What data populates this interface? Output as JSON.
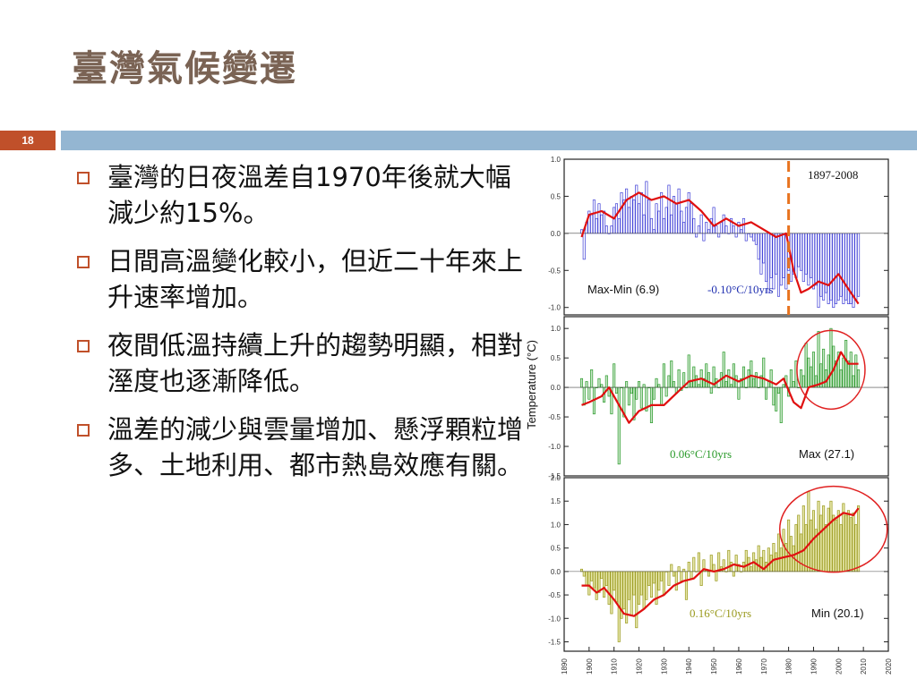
{
  "slide": {
    "title": "臺灣氣候變遷",
    "page_number": "18",
    "bullets": [
      "臺灣的日夜溫差自1970年後就大幅減少約15%。",
      "日間高溫變化較小，但近二十年來上升速率增加。",
      "夜間低溫持續上升的趨勢明顯，相對溼度也逐漸降低。",
      "溫差的減少與雲量增加、懸浮顆粒增多、土地利用、都市熱島效應有關。"
    ]
  },
  "colors": {
    "title": "#7a6354",
    "accent": "#c0502a",
    "band": "#94b6d2",
    "max_min_bars": "#3b3bd6",
    "max_bars": "#2a9a2a",
    "min_bars": "#9a9a1e",
    "smooth_line": "#e01010",
    "cutoff_line": "#e8731e",
    "highlight_circle": "#e02020"
  },
  "chart_data": {
    "type": "bar",
    "ylabel": "Temperature (°C)",
    "x_ticks": [
      1890,
      1900,
      1910,
      1920,
      1930,
      1940,
      1950,
      1960,
      1970,
      1980,
      1990,
      2000,
      2010,
      2020
    ],
    "xlim": [
      1890,
      2020
    ],
    "period_label": "1897-2008",
    "cutoff_year": 1980,
    "panels": [
      {
        "name": "Max-Min (6.9)",
        "trend_label": "-0.10°C/10yrs",
        "ylim": [
          -1.1,
          1.0
        ],
        "y_ticks": [
          "1.0",
          "0.5",
          "0.0",
          "-0.5",
          "-1.0"
        ],
        "y_tick_values": [
          1.0,
          0.5,
          0.0,
          -0.5,
          -1.0
        ],
        "start_year": 1897,
        "values": [
          0.05,
          -0.35,
          0.15,
          0.3,
          0.25,
          0.45,
          0.2,
          0.4,
          0.25,
          0.3,
          0.1,
          0.0,
          0.1,
          0.35,
          0.4,
          0.2,
          0.55,
          0.45,
          0.6,
          0.35,
          0.5,
          0.45,
          0.65,
          0.4,
          0.55,
          0.25,
          0.7,
          0.45,
          0.2,
          0.05,
          0.4,
          0.3,
          0.55,
          0.2,
          0.35,
          0.65,
          0.25,
          0.5,
          0.4,
          0.6,
          0.3,
          0.15,
          0.35,
          0.55,
          0.4,
          0.2,
          -0.05,
          0.1,
          0.25,
          -0.1,
          0.15,
          0.05,
          0.2,
          0.35,
          0.1,
          -0.05,
          0.15,
          0.25,
          0.1,
          0.0,
          0.2,
          0.1,
          -0.05,
          0.15,
          0.05,
          0.2,
          -0.1,
          0.0,
          -0.05,
          -0.1,
          -0.15,
          -0.35,
          -0.55,
          -0.4,
          -0.65,
          -0.8,
          -0.6,
          -0.75,
          -0.55,
          -0.85,
          -0.7,
          -0.6,
          -0.75,
          -0.5,
          -0.65,
          -0.55,
          -0.6,
          -0.45,
          -0.5,
          -0.65,
          -0.55,
          -0.7,
          -0.6,
          -0.75,
          -0.7,
          -1.0,
          -0.85,
          -0.9,
          -0.8,
          -0.95,
          -0.9,
          -1.0,
          -0.95,
          -0.9,
          -0.85,
          -0.95,
          -0.9,
          -0.95,
          -0.95,
          -1.0,
          -0.9,
          -0.85
        ],
        "smooth": [
          [
            1897,
            -0.05
          ],
          [
            1900,
            0.25
          ],
          [
            1905,
            0.3
          ],
          [
            1910,
            0.2
          ],
          [
            1915,
            0.45
          ],
          [
            1920,
            0.55
          ],
          [
            1925,
            0.45
          ],
          [
            1930,
            0.5
          ],
          [
            1935,
            0.4
          ],
          [
            1940,
            0.45
          ],
          [
            1945,
            0.3
          ],
          [
            1950,
            0.1
          ],
          [
            1955,
            0.2
          ],
          [
            1960,
            0.1
          ],
          [
            1965,
            0.15
          ],
          [
            1970,
            0.05
          ],
          [
            1975,
            -0.05
          ],
          [
            1979,
            0.0
          ],
          [
            1982,
            -0.5
          ],
          [
            1985,
            -0.8
          ],
          [
            1988,
            -0.75
          ],
          [
            1992,
            -0.65
          ],
          [
            1996,
            -0.7
          ],
          [
            2000,
            -0.55
          ],
          [
            2004,
            -0.75
          ],
          [
            2008,
            -0.95
          ]
        ],
        "highlight": null
      },
      {
        "name": "Max (27.1)",
        "trend_label": "0.06°C/10yrs",
        "ylim": [
          -1.5,
          1.2
        ],
        "y_ticks": [
          "1.0",
          "0.5",
          "0.0",
          "-0.5",
          "-1.0",
          "-1.5"
        ],
        "y_tick_values": [
          1.0,
          0.5,
          0.0,
          -0.5,
          -1.0,
          -1.5
        ],
        "start_year": 1897,
        "values": [
          0.15,
          -0.3,
          0.1,
          -0.2,
          0.3,
          -0.45,
          0.0,
          0.15,
          0.05,
          -0.25,
          0.2,
          -0.15,
          -0.45,
          0.4,
          -0.1,
          -1.3,
          0.0,
          -0.5,
          0.1,
          -0.3,
          -0.1,
          -0.55,
          -0.2,
          0.1,
          -0.35,
          0.05,
          -0.4,
          0.0,
          -0.6,
          -0.2,
          0.15,
          0.05,
          -0.3,
          0.4,
          -0.15,
          0.2,
          0.45,
          0.1,
          -0.1,
          0.3,
          -0.05,
          0.25,
          0.0,
          0.55,
          0.1,
          0.35,
          0.2,
          0.05,
          0.3,
          0.15,
          0.4,
          0.25,
          -0.1,
          0.35,
          0.15,
          0.0,
          0.25,
          0.6,
          0.1,
          0.3,
          0.05,
          0.4,
          0.2,
          -0.2,
          0.15,
          0.35,
          0.0,
          0.3,
          0.45,
          0.15,
          0.25,
          0.0,
          0.2,
          0.5,
          -0.2,
          0.1,
          0.3,
          -0.3,
          -0.4,
          -0.1,
          -0.6,
          0.05,
          0.2,
          -0.15,
          0.3,
          0.1,
          0.45,
          0.0,
          0.3,
          0.2,
          0.75,
          0.5,
          0.35,
          0.6,
          0.2,
          0.95,
          0.4,
          0.65,
          0.3,
          0.55,
          1.0,
          0.7,
          0.45,
          0.6,
          0.3,
          0.5,
          0.8,
          0.45,
          0.6,
          0.2,
          0.55,
          0.3
        ],
        "smooth": [
          [
            1897,
            -0.3
          ],
          [
            1900,
            -0.25
          ],
          [
            1905,
            -0.15
          ],
          [
            1908,
            0.0
          ],
          [
            1912,
            -0.3
          ],
          [
            1916,
            -0.6
          ],
          [
            1920,
            -0.4
          ],
          [
            1925,
            -0.3
          ],
          [
            1930,
            -0.3
          ],
          [
            1935,
            -0.1
          ],
          [
            1940,
            0.1
          ],
          [
            1945,
            0.15
          ],
          [
            1950,
            0.05
          ],
          [
            1955,
            0.2
          ],
          [
            1960,
            0.1
          ],
          [
            1965,
            0.2
          ],
          [
            1970,
            0.15
          ],
          [
            1975,
            0.05
          ],
          [
            1978,
            0.15
          ],
          [
            1982,
            -0.25
          ],
          [
            1985,
            -0.35
          ],
          [
            1988,
            0.0
          ],
          [
            1992,
            0.05
          ],
          [
            1995,
            0.1
          ],
          [
            1998,
            0.3
          ],
          [
            2001,
            0.6
          ],
          [
            2004,
            0.4
          ],
          [
            2008,
            0.4
          ]
        ],
        "highlight": {
          "x": 1997,
          "y": 0.3
        }
      },
      {
        "name": "Min (20.1)",
        "trend_label": "0.16°C/10yrs",
        "ylim": [
          -1.7,
          2.0
        ],
        "y_ticks": [
          "2.0",
          "1.5",
          "1.0",
          "0.5",
          "0.0",
          "-0.5",
          "-1.0",
          "-1.5"
        ],
        "y_tick_values": [
          2.0,
          1.5,
          1.0,
          0.5,
          0.0,
          -0.5,
          -1.0,
          -1.5
        ],
        "start_year": 1897,
        "values": [
          0.05,
          -0.1,
          -0.3,
          -0.5,
          -0.2,
          -0.35,
          -0.6,
          -0.45,
          -0.15,
          -0.55,
          -0.3,
          -0.7,
          -0.9,
          -0.4,
          -0.65,
          -1.5,
          -1.0,
          -0.8,
          -1.1,
          -0.6,
          -0.95,
          -0.5,
          -1.2,
          -0.7,
          -0.5,
          -0.8,
          -0.6,
          -0.3,
          -0.55,
          -0.25,
          -0.7,
          -0.4,
          -0.2,
          -0.5,
          0.0,
          -0.3,
          0.15,
          -0.1,
          -0.4,
          0.1,
          -0.2,
          0.05,
          -0.6,
          0.2,
          -0.15,
          0.3,
          0.0,
          0.4,
          -0.3,
          0.25,
          0.05,
          -0.1,
          0.35,
          0.15,
          -0.2,
          0.4,
          0.1,
          0.25,
          0.0,
          0.45,
          0.2,
          -0.1,
          0.35,
          0.15,
          0.0,
          0.2,
          0.45,
          0.3,
          0.1,
          0.4,
          0.25,
          0.55,
          0.3,
          0.45,
          0.2,
          0.5,
          0.35,
          0.6,
          0.4,
          0.8,
          0.5,
          0.9,
          0.6,
          1.1,
          0.75,
          0.55,
          1.0,
          1.2,
          0.8,
          1.4,
          1.0,
          1.7,
          1.1,
          1.3,
          0.9,
          1.5,
          1.2,
          1.4,
          1.0,
          1.35,
          1.5,
          1.2,
          1.1,
          1.3,
          1.0,
          1.45,
          1.2,
          1.3,
          1.15,
          1.25,
          1.0,
          1.4
        ],
        "smooth": [
          [
            1897,
            -0.3
          ],
          [
            1900,
            -0.3
          ],
          [
            1903,
            -0.45
          ],
          [
            1906,
            -0.35
          ],
          [
            1910,
            -0.6
          ],
          [
            1914,
            -0.9
          ],
          [
            1918,
            -0.95
          ],
          [
            1922,
            -0.8
          ],
          [
            1926,
            -0.6
          ],
          [
            1930,
            -0.5
          ],
          [
            1934,
            -0.3
          ],
          [
            1938,
            -0.2
          ],
          [
            1942,
            -0.15
          ],
          [
            1946,
            0.05
          ],
          [
            1950,
            0.0
          ],
          [
            1954,
            0.05
          ],
          [
            1958,
            0.15
          ],
          [
            1962,
            0.1
          ],
          [
            1966,
            0.2
          ],
          [
            1970,
            0.05
          ],
          [
            1974,
            0.25
          ],
          [
            1978,
            0.3
          ],
          [
            1982,
            0.35
          ],
          [
            1986,
            0.45
          ],
          [
            1990,
            0.7
          ],
          [
            1994,
            0.9
          ],
          [
            1998,
            1.1
          ],
          [
            2002,
            1.25
          ],
          [
            2006,
            1.2
          ],
          [
            2008,
            1.35
          ]
        ],
        "highlight": {
          "x": 1998,
          "y": 0.9
        }
      }
    ]
  }
}
